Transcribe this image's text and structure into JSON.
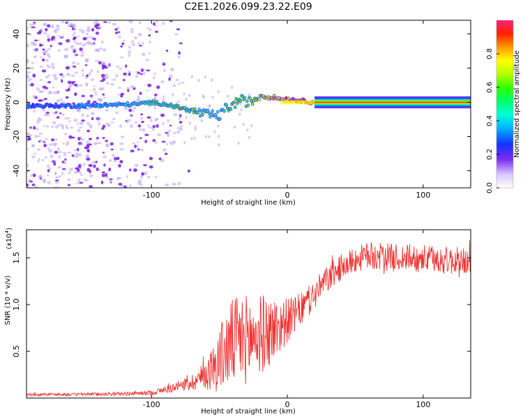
{
  "title": "C2E1.2026.099.23.22.E09",
  "colors": {
    "line": "#ee3333",
    "frame": "#000000",
    "speckle": "#7a1fe0",
    "speckle_light": "#b9a2f2"
  },
  "chart_data": [
    {
      "type": "heatmap",
      "title": "C2E1.2026.099.23.22.E09",
      "xlabel": "Height of straight line (km)",
      "ylabel": "Frequency (Hz)",
      "xlim": [
        -192,
        135
      ],
      "ylim": [
        -50,
        48
      ],
      "x_ticks": [
        -100,
        0,
        100
      ],
      "y_ticks": [
        -40,
        -20,
        0,
        20,
        40
      ],
      "colorbar": {
        "label": "Normalized spectral amplitude",
        "range": [
          0.0,
          1.0
        ],
        "ticks": [
          0.0,
          0.2,
          0.4,
          0.6,
          0.8
        ],
        "tick_labels": [
          "0.0",
          "0.2",
          "0.4",
          "0.6",
          "0.8"
        ]
      },
      "ridge": {
        "description": "dominant frequency track",
        "x": [
          -192,
          -170,
          -150,
          -130,
          -110,
          -100,
          -90,
          -80,
          -70,
          -60,
          -50,
          -45,
          -40,
          -35,
          -30,
          -25,
          -20,
          -15,
          -10,
          -5,
          0,
          10,
          20,
          40,
          60,
          80,
          100,
          120,
          135
        ],
        "frequency_hz": [
          -2,
          -2,
          -2,
          -1.5,
          -1,
          0,
          -1,
          -3,
          -5,
          -7,
          -8,
          -3,
          -2,
          2,
          0,
          1,
          4,
          3,
          3,
          2,
          2,
          1,
          0,
          0,
          0,
          0,
          0,
          0,
          0
        ],
        "amplitude": [
          0.3,
          0.3,
          0.35,
          0.4,
          0.45,
          0.5,
          0.5,
          0.55,
          0.55,
          0.5,
          0.45,
          0.5,
          0.55,
          0.6,
          0.55,
          0.6,
          0.65,
          0.7,
          0.75,
          0.8,
          0.85,
          0.9,
          0.95,
          0.95,
          0.95,
          0.95,
          0.95,
          0.95,
          0.95
        ]
      }
    },
    {
      "type": "line",
      "xlabel": "Height of straight line (km)",
      "ylabel": "SNR (10 * v/v)",
      "y_multiplier": "(x10^4)",
      "y_multiplier_base": "(x10",
      "y_multiplier_exp": "4",
      "y_multiplier_close": ")",
      "xlim": [
        -192,
        135
      ],
      "ylim": [
        0,
        18000
      ],
      "x_ticks": [
        -100,
        0,
        100
      ],
      "y_ticks": [
        5000,
        10000,
        15000
      ],
      "y_tick_labels": [
        "0.5",
        "1.0",
        "1.5"
      ],
      "series": [
        {
          "name": "SNR",
          "x": [
            -192,
            -180,
            -160,
            -140,
            -120,
            -100,
            -90,
            -80,
            -70,
            -60,
            -55,
            -50,
            -45,
            -40,
            -35,
            -30,
            -25,
            -20,
            -15,
            -10,
            -5,
            0,
            5,
            10,
            15,
            20,
            25,
            30,
            40,
            50,
            60,
            70,
            80,
            90,
            100,
            110,
            120,
            135
          ],
          "y_mean": [
            350,
            400,
            380,
            420,
            450,
            550,
            900,
            1200,
            1700,
            2500,
            3200,
            4200,
            5200,
            6000,
            6200,
            6300,
            6500,
            6800,
            7000,
            7300,
            7800,
            8300,
            8800,
            9500,
            10200,
            11000,
            12000,
            12800,
            14000,
            14800,
            15200,
            15100,
            15000,
            15000,
            14900,
            14800,
            14700,
            14600
          ],
          "y_spread": [
            150,
            150,
            150,
            180,
            200,
            250,
            400,
            600,
            900,
            1600,
            2500,
            3500,
            4200,
            4800,
            5000,
            4800,
            4600,
            4300,
            4000,
            3600,
            3000,
            2400,
            2000,
            1800,
            1700,
            1600,
            1500,
            1500,
            1400,
            1400,
            1500,
            1500,
            1500,
            1500,
            1500,
            1500,
            1500,
            1500
          ]
        }
      ]
    }
  ]
}
